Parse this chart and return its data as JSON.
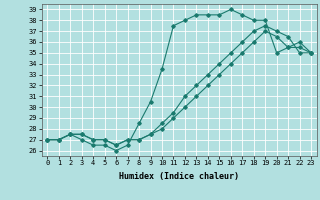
{
  "xlabel": "Humidex (Indice chaleur)",
  "background_color": "#b2e0e0",
  "grid_color": "#ffffff",
  "line_color": "#1a7a6e",
  "xlim": [
    -0.5,
    23.5
  ],
  "ylim": [
    25.5,
    39.5
  ],
  "yticks": [
    26,
    27,
    28,
    29,
    30,
    31,
    32,
    33,
    34,
    35,
    36,
    37,
    38,
    39
  ],
  "xticks": [
    0,
    1,
    2,
    3,
    4,
    5,
    6,
    7,
    8,
    9,
    10,
    11,
    12,
    13,
    14,
    15,
    16,
    17,
    18,
    19,
    20,
    21,
    22,
    23
  ],
  "series": [
    [
      27,
      27,
      27.5,
      27,
      26.5,
      26.5,
      26,
      26.5,
      28.5,
      30.5,
      33.5,
      37.5,
      38,
      38.5,
      38.5,
      38.5,
      39,
      38.5,
      38,
      38,
      35,
      35.5,
      36,
      35
    ],
    [
      27,
      27,
      27.5,
      27.5,
      27,
      27,
      26.5,
      27,
      27,
      27.5,
      28.5,
      29.5,
      31,
      32,
      33,
      34,
      35,
      36,
      37,
      37.5,
      37,
      36.5,
      35,
      35
    ],
    [
      27,
      27,
      27.5,
      27.5,
      27,
      27,
      26.5,
      27,
      27,
      27.5,
      28,
      29,
      30,
      31,
      32,
      33,
      34,
      35,
      36,
      37,
      36.5,
      35.5,
      35.5,
      35
    ]
  ]
}
